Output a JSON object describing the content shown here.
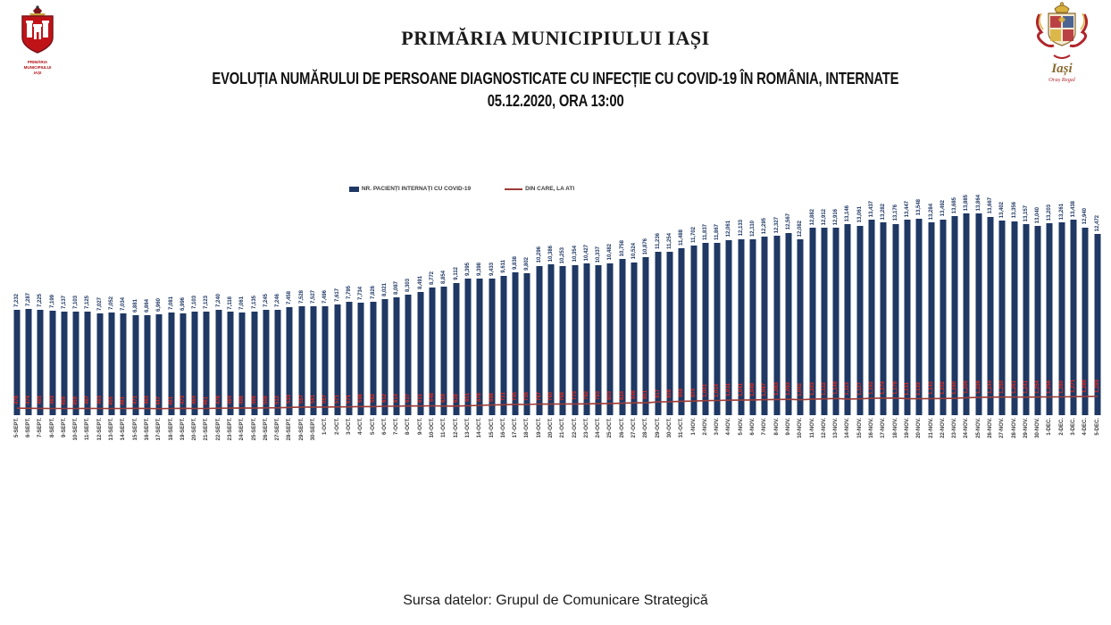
{
  "header": {
    "title": "PRIMĂRIA MUNICIPIULUI IAȘI",
    "subtitle": "EVOLUȚIA NUMĂRULUI DE PERSOANE DIAGNOSTICATE CU INFECȚIE CU COVID-19 ÎN ROMÂNIA, INTERNATE",
    "subtitle2": "05.12.2020, ORA 13:00",
    "left_logo_caption_line1": "PRIMĂRIA",
    "left_logo_caption_line2": "MUNICIPIULUI",
    "left_logo_caption_line3": "IAȘI",
    "right_logo_caption_line1": "Iași",
    "right_logo_caption_line2": "Oraș Regal"
  },
  "footer": {
    "source": "Sursa datelor: Grupul de Comunicare Strategică"
  },
  "colors": {
    "bar": "#1F3864",
    "bar_label": "#1F3864",
    "ati_line": "#9E3B36",
    "ati_label": "#E02B20",
    "date_label": "#3B3B3B"
  },
  "chart_data": {
    "type": "bar",
    "title": "Evoluția numărului de persoane diagnosticate cu infecție cu COVID-19 în România, internate, 05.12.2020 ora 13:00",
    "xlabel": "",
    "ylabel": "",
    "ylim": [
      0,
      15000
    ],
    "grid": false,
    "legend_position": "top",
    "categories": [
      "5-SEPT.",
      "6-SEPT.",
      "7-SEPT.",
      "8-SEPT.",
      "9-SEPT.",
      "10-SEPT.",
      "11-SEPT.",
      "12-SEPT.",
      "13-SEPT.",
      "14-SEPT.",
      "15-SEPT.",
      "16-SEPT.",
      "17-SEPT.",
      "18-SEPT.",
      "19-SEPT.",
      "20-SEPT.",
      "21-SEPT.",
      "22-SEPT.",
      "23-SEPT.",
      "24-SEPT.",
      "25-SEPT.",
      "26-SEPT.",
      "27-SEPT.",
      "28-SEPT.",
      "29-SEPT.",
      "30-SEPT.",
      "1-OCT.",
      "2-OCT.",
      "3-OCT.",
      "4-OCT.",
      "5-OCT.",
      "6-OCT.",
      "7-OCT.",
      "8-OCT.",
      "9-OCT.",
      "10-OCT.",
      "11-OCT.",
      "12-OCT.",
      "13-OCT.",
      "14-OCT.",
      "15-OCT.",
      "16-OCT.",
      "17-OCT.",
      "18-OCT.",
      "19-OCT.",
      "20-OCT.",
      "21-OCT.",
      "22-OCT.",
      "23-OCT.",
      "24-OCT.",
      "25-OCT.",
      "26-OCT.",
      "27-OCT.",
      "28-OCT.",
      "29-OCT.",
      "30-OCT.",
      "31-OCT.",
      "1-NOV.",
      "2-NOV.",
      "3-NOV.",
      "4-NOV.",
      "5-NOV.",
      "6-NOV.",
      "7-NOV.",
      "8-NOV.",
      "9-NOV.",
      "10-NOV.",
      "11-NOV.",
      "12-NOV.",
      "13-NOV.",
      "14-NOV.",
      "15-NOV.",
      "16-NOV.",
      "17-NOV.",
      "18-NOV.",
      "19-NOV.",
      "20-NOV.",
      "21-NOV.",
      "22-NOV.",
      "23-NOV.",
      "24-NOV.",
      "25-NOV.",
      "26-NOV.",
      "27-NOV.",
      "28-NOV.",
      "29-NOV.",
      "30-NOV.",
      "1-DEC.",
      "2-DEC.",
      "3-DEC.",
      "4-DEC.",
      "5-DEC."
    ],
    "series": [
      {
        "name": "NR. PACIENȚI INTERNAȚI CU COVID-19",
        "type": "bar",
        "color": "#1F3864",
        "values": [
          7232,
          7287,
          7225,
          7199,
          7137,
          7103,
          7125,
          7027,
          7052,
          7034,
          6881,
          6864,
          6960,
          7081,
          6996,
          7103,
          7123,
          7240,
          7118,
          7061,
          7135,
          7245,
          7246,
          7458,
          7528,
          7527,
          7496,
          7617,
          7795,
          7734,
          7826,
          8021,
          8087,
          8303,
          8491,
          8772,
          8854,
          9112,
          9395,
          9398,
          9433,
          9611,
          9838,
          9802,
          10296,
          10386,
          10253,
          10354,
          10427,
          10337,
          10482,
          10758,
          10524,
          10876,
          11236,
          11254,
          11488,
          11702,
          11837,
          11867,
          12061,
          12133,
          12110,
          12295,
          12327,
          12567,
          12082,
          12882,
          12912,
          12916,
          13146,
          13061,
          13437,
          13282,
          13176,
          13447,
          13548,
          13284,
          13492,
          13685,
          13885,
          13864,
          13667,
          13402,
          13356,
          13157,
          13040,
          13203,
          13261,
          13438,
          12940,
          12472
        ]
      },
      {
        "name": "DIN CARE, LA ATI",
        "type": "line",
        "color": "#9E3B36",
        "label_color": "#E02B20",
        "values": [
          478,
          474,
          465,
          463,
          459,
          459,
          467,
          463,
          455,
          461,
          471,
          463,
          447,
          461,
          473,
          464,
          461,
          478,
          484,
          496,
          488,
          506,
          512,
          533,
          557,
          561,
          557,
          571,
          571,
          598,
          592,
          612,
          614,
          637,
          631,
          648,
          629,
          628,
          651,
          678,
          698,
          721,
          745,
          736,
          767,
          760,
          768,
          773,
          782,
          793,
          803,
          824,
          846,
          851,
          917,
          929,
          958,
          974,
          1001,
          1014,
          1031,
          1041,
          1049,
          1067,
          1083,
          1093,
          1062,
          1103,
          1122,
          1149,
          1113,
          1127,
          1162,
          1174,
          1179,
          1131,
          1133,
          1143,
          1152,
          1160,
          1205,
          1226,
          1244,
          1250,
          1251,
          1241,
          1254,
          1256,
          1260,
          1271,
          1285,
          1289
        ]
      }
    ]
  }
}
